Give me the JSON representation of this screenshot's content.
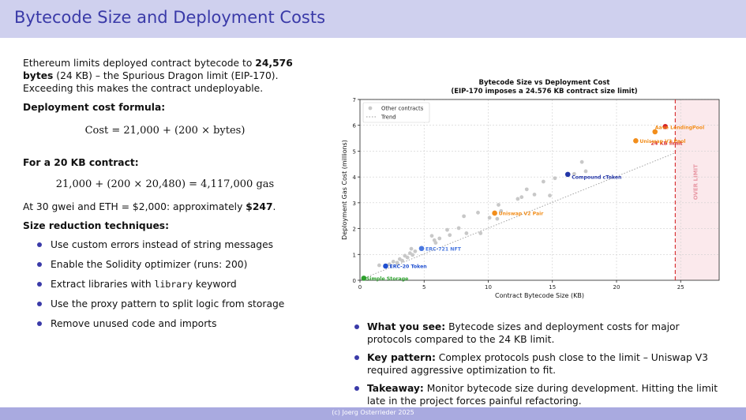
{
  "slide": {
    "title": "Bytecode Size and Deployment Costs",
    "footer": "(c) Joerg Osterrieder 2025"
  },
  "left": {
    "intro_pre": "Ethereum limits deployed contract bytecode to ",
    "intro_bold": "24,576 bytes",
    "intro_post": " (24 KB) – the Spurious Dragon limit (EIP-170). Exceeding this makes the contract undeployable.",
    "formula_heading": "Deployment cost formula:",
    "formula": "Cost = 21,000 + (200 × bytes)",
    "example_heading": "For a 20 KB contract:",
    "example_formula": "21,000 + (200 × 20,480) = 4,117,000 gas",
    "price_pre": "At 30 gwei and ETH = $2,000: approximately ",
    "price_bold": "$247",
    "price_post": ".",
    "techniques_heading": "Size reduction techniques:",
    "techniques": [
      "Use custom errors instead of string messages",
      "Enable the Solidity optimizer (runs: 200)",
      "Extract libraries with ",
      "Use the proxy pattern to split logic from storage",
      "Remove unused code and imports"
    ],
    "library_keyword": "library",
    "library_suffix": " keyword"
  },
  "right": {
    "bullets": [
      {
        "label": "What you see:",
        "text": " Bytecode sizes and deployment costs for major protocols compared to the 24 KB limit."
      },
      {
        "label": "Key pattern:",
        "text": " Complex protocols push close to the limit – Uniswap V3 required aggressive optimization to fit."
      },
      {
        "label": "Takeaway:",
        "text": " Monitor bytecode size during development. Hitting the limit late in the project forces painful refactoring."
      }
    ]
  },
  "chart_data": {
    "type": "scatter",
    "title": "Bytecode Size vs Deployment Cost",
    "subtitle": "(EIP-170 imposes a 24.576 KB contract size limit)",
    "xlabel": "Contract Bytecode Size (KB)",
    "ylabel": "Deployment Gas Cost (millions)",
    "xlim": [
      0,
      28
    ],
    "ylim": [
      0,
      7
    ],
    "xticks": [
      0,
      5,
      10,
      15,
      20,
      25
    ],
    "yticks": [
      0,
      1,
      2,
      3,
      4,
      5,
      6,
      7
    ],
    "grid": true,
    "legend_placement": "top-left",
    "legend": [
      "Other contracts",
      "Trend"
    ],
    "limit_kb": 24.576,
    "limit_label": "24 KB limit",
    "over_limit_label": "OVER LIMIT",
    "colors": {
      "other": "#c8c8c8",
      "trend": "#9a9a9a",
      "limit": "#d62728",
      "over_fill": "#fbe9ec"
    },
    "protocols": [
      {
        "name": "Simple Storage",
        "x": 0.3,
        "y": 0.08,
        "color": "#2ca02c"
      },
      {
        "name": "ERC-20 Token",
        "x": 2.0,
        "y": 0.55,
        "color": "#1f4fd0"
      },
      {
        "name": "ERC-721 NFT",
        "x": 4.8,
        "y": 1.23,
        "color": "#4a78e0"
      },
      {
        "name": "Uniswap V2 Pair",
        "x": 10.5,
        "y": 2.6,
        "color": "#f28e1c"
      },
      {
        "name": "Compound cToken",
        "x": 16.2,
        "y": 4.1,
        "color": "#2336a8"
      },
      {
        "name": "Uniswap V3 Pool",
        "x": 21.5,
        "y": 5.4,
        "color": "#f28e1c"
      },
      {
        "name": "Aave LendingPool",
        "x": 23.0,
        "y": 5.75,
        "color": "#f28e1c"
      },
      {
        "name": "Aave LendingPool",
        "x": 23.8,
        "y": 5.95,
        "color": "#d62728"
      }
    ],
    "others": [
      [
        1.5,
        0.58
      ],
      [
        2.3,
        0.62
      ],
      [
        2.6,
        0.72
      ],
      [
        2.9,
        0.68
      ],
      [
        3.1,
        0.82
      ],
      [
        3.3,
        0.76
      ],
      [
        3.5,
        0.95
      ],
      [
        3.7,
        0.88
      ],
      [
        3.9,
        1.05
      ],
      [
        4.1,
        0.98
      ],
      [
        4.3,
        1.12
      ],
      [
        4.0,
        1.22
      ],
      [
        5.6,
        1.72
      ],
      [
        5.8,
        1.55
      ],
      [
        5.9,
        1.45
      ],
      [
        6.2,
        1.62
      ],
      [
        6.8,
        1.95
      ],
      [
        7.0,
        1.75
      ],
      [
        7.7,
        2.02
      ],
      [
        8.1,
        2.48
      ],
      [
        8.3,
        1.82
      ],
      [
        9.2,
        2.62
      ],
      [
        9.4,
        1.82
      ],
      [
        10.1,
        2.42
      ],
      [
        10.7,
        2.38
      ],
      [
        10.8,
        2.92
      ],
      [
        11.0,
        2.68
      ],
      [
        12.3,
        3.15
      ],
      [
        12.6,
        3.22
      ],
      [
        13.0,
        3.52
      ],
      [
        13.6,
        3.32
      ],
      [
        14.3,
        3.82
      ],
      [
        14.8,
        3.28
      ],
      [
        15.2,
        3.95
      ],
      [
        16.7,
        4.12
      ],
      [
        17.3,
        4.58
      ],
      [
        17.6,
        4.22
      ]
    ],
    "trend": [
      [
        0,
        0.02
      ],
      [
        24.6,
        4.94
      ]
    ]
  }
}
